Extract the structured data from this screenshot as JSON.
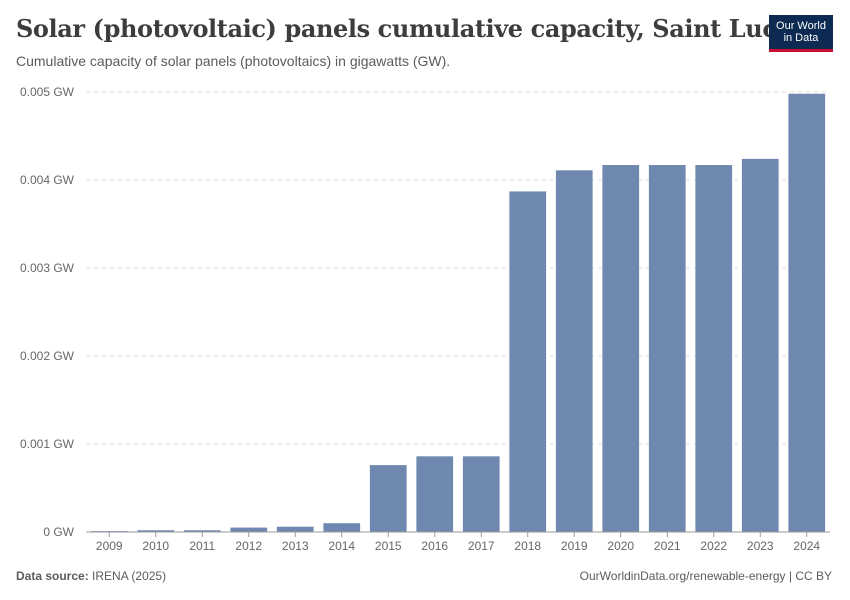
{
  "header": {
    "title": "Solar (photovoltaic) panels cumulative capacity, Saint Lucia",
    "subtitle": "Cumulative capacity of solar panels (photovoltaics) in gigawatts (GW).",
    "logo_line1": "Our World",
    "logo_line2": "in Data"
  },
  "footer": {
    "source_label": "Data source:",
    "source_value": "IRENA (2025)",
    "link": "OurWorldinData.org/renewable-energy | CC BY"
  },
  "colors": {
    "bar": "#6f88b0",
    "grid": "#dddddd",
    "axis": "#999999",
    "logo_bg": "#0d2a52",
    "logo_accent": "#c8102e"
  },
  "chart_data": {
    "type": "bar",
    "title": "Solar (photovoltaic) panels cumulative capacity, Saint Lucia",
    "xlabel": "",
    "ylabel": "",
    "categories": [
      "2009",
      "2010",
      "2011",
      "2012",
      "2013",
      "2014",
      "2015",
      "2016",
      "2017",
      "2018",
      "2019",
      "2020",
      "2021",
      "2022",
      "2023",
      "2024"
    ],
    "values": [
      1e-05,
      2e-05,
      2e-05,
      5e-05,
      6e-05,
      0.0001,
      0.00076,
      0.00086,
      0.00086,
      0.00387,
      0.00411,
      0.00417,
      0.00417,
      0.00417,
      0.00424,
      0.00498
    ],
    "ylim": [
      0,
      0.005
    ],
    "y_ticks": [
      0,
      0.001,
      0.002,
      0.003,
      0.004,
      0.005
    ],
    "y_tick_labels": [
      "0 GW",
      "0.001 GW",
      "0.002 GW",
      "0.003 GW",
      "0.004 GW",
      "0.005 GW"
    ],
    "grid": true,
    "grid_style": "dashed-horizontal",
    "legend": "none"
  }
}
